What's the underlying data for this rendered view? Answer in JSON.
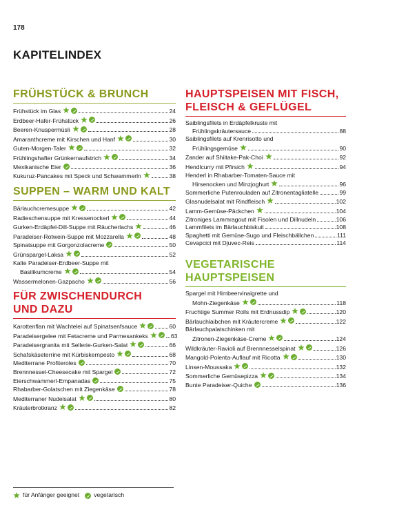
{
  "page_number": "178",
  "title": "KAPITELINDEX",
  "colors": {
    "olive": "#8a9a1c",
    "red": "#d6202a",
    "green": "#7fb52a",
    "veg": "#6cae2f"
  },
  "icons": {
    "beginner": "star-leaf-icon",
    "vegetarian": "leaf-icon"
  },
  "sections": {
    "breakfast": {
      "title": "FRÜHSTÜCK & BRUNCH",
      "entries": [
        {
          "name": "Frühstück im Glas",
          "beg": true,
          "veg": true,
          "page": "24"
        },
        {
          "name": "Erdbeer-Hafer-Frühstück",
          "beg": true,
          "veg": true,
          "page": "26"
        },
        {
          "name": "Beeren-Knuspermüsli",
          "beg": true,
          "veg": true,
          "page": "28"
        },
        {
          "name": "Amaranthcreme mit Kirschen und Hanf",
          "beg": true,
          "veg": true,
          "page": "30"
        },
        {
          "name": "Guten-Morgen-Taler",
          "beg": true,
          "veg": true,
          "page": "32"
        },
        {
          "name": "Frühlingshafter Grünkernaufstrich",
          "beg": true,
          "veg": true,
          "page": "34"
        },
        {
          "name": "Mexikanische Eier",
          "beg": false,
          "veg": true,
          "page": "36"
        },
        {
          "name": "Kukuruz-Pancakes mit Speck und Schwammerln",
          "beg": true,
          "veg": false,
          "page": "38"
        }
      ]
    },
    "soups": {
      "title": "SUPPEN – WARM UND KALT",
      "entries": [
        {
          "name": "Bärlauchcremesuppe",
          "beg": true,
          "veg": true,
          "page": "42"
        },
        {
          "name": "Radieschensuppe mit Kressenockerl",
          "beg": true,
          "veg": true,
          "page": "44"
        },
        {
          "name": "Gurken-Erdäpfel-Dill-Suppe mit Räucherlachs",
          "beg": true,
          "veg": false,
          "page": "46"
        },
        {
          "name": "Paradeiser-Rotwein-Suppe mit Mozzarella",
          "beg": true,
          "veg": true,
          "page": "48"
        },
        {
          "name": "Spinatsuppe mit Gorgonzolacreme",
          "beg": false,
          "veg": true,
          "page": "50"
        },
        {
          "name": "Grünspargel-Laksa",
          "beg": true,
          "veg": true,
          "page": "52"
        },
        {
          "line1": "Kalte Paradeiser-Erdbeer-Suppe mit",
          "name": "Basilikumcreme",
          "beg": true,
          "veg": true,
          "page": "54"
        },
        {
          "name": "Wassermelonen-Gazpacho",
          "beg": true,
          "veg": true,
          "page": "56"
        }
      ]
    },
    "snacks": {
      "title1": "FÜR ZWISCHENDURCH",
      "title2": "UND DAZU",
      "entries": [
        {
          "name": "Karottenflan mit Wachtelei auf Spinatsenfsauce",
          "beg": true,
          "veg": true,
          "page": "60"
        },
        {
          "name": "Paradeisergelee mit Fetacreme und Parmesankeks",
          "beg": true,
          "veg": true,
          "page": "63"
        },
        {
          "name": "Paradeisergranita mit Sellerie-Gurken-Salat",
          "beg": true,
          "veg": true,
          "page": "66"
        },
        {
          "name": "Schafskäseterrine mit Kürbiskernpesto",
          "beg": true,
          "veg": true,
          "page": "68"
        },
        {
          "name": "Mediterrane Profiteroles",
          "beg": false,
          "veg": true,
          "page": "70"
        },
        {
          "name": "Brennnessel-Cheesecake mit Spargel",
          "beg": false,
          "veg": true,
          "page": "72"
        },
        {
          "name": "Eierschwammerl-Empanadas",
          "beg": false,
          "veg": true,
          "page": "75"
        },
        {
          "name": "Rhabarber-Golatschen mit Ziegenkäse",
          "beg": false,
          "veg": true,
          "page": "78"
        },
        {
          "name": "Mediterraner Nudelsalat",
          "beg": true,
          "veg": true,
          "page": "80"
        },
        {
          "name": "Kräuterbrotkranz",
          "beg": true,
          "veg": true,
          "page": "82"
        }
      ]
    },
    "main_fish_meat": {
      "title1": "HAUPTSPEISEN MIT FISCH,",
      "title2": "FLEISCH & GEFLÜGEL",
      "entries": [
        {
          "line1": "Saiblingsfilets in Erdäpfelkruste mit",
          "name": "Frühlingskräutersauce",
          "beg": false,
          "veg": false,
          "page": "88"
        },
        {
          "line1": "Saiblingsfilets auf Krenrisotto und",
          "name": "Frühlingsgemüse",
          "beg": true,
          "veg": false,
          "page": "90"
        },
        {
          "name": "Zander auf Shiitake-Pak-Choi",
          "beg": true,
          "veg": false,
          "page": "92"
        },
        {
          "name": "Hendlcurry mit Pfirsich",
          "beg": true,
          "veg": false,
          "page": "94"
        },
        {
          "line1": "Henderl in Rhabarber-Tomaten-Sauce mit",
          "name": "Hirsenocken und Minzjoghurt",
          "beg": true,
          "veg": false,
          "page": "96"
        },
        {
          "name": "Sommerliche Putenrouladen auf Zitronentagliatelle",
          "beg": false,
          "veg": false,
          "page": "99"
        },
        {
          "name": "Glasnudelsalat mit Rindfleisch",
          "beg": true,
          "veg": false,
          "page": "102"
        },
        {
          "name": "Lamm-Gemüse-Päckchen",
          "beg": true,
          "veg": false,
          "page": "104"
        },
        {
          "name": "Zitroniges Lammragout mit Fisolen und Dillnudeln",
          "beg": false,
          "veg": false,
          "page": "106"
        },
        {
          "name": "Lammfilets im Bärlauchbiskuit",
          "beg": false,
          "veg": false,
          "page": "108"
        },
        {
          "name": "Spaghetti mit Gemüse-Sugo und Fleischbällchen",
          "beg": false,
          "veg": false,
          "page": "111"
        },
        {
          "name": "Cevapcici mit Djuvec-Reis",
          "beg": false,
          "veg": false,
          "page": "114"
        }
      ]
    },
    "main_veg": {
      "title1": "VEGETARISCHE",
      "title2": "HAUPTSPEISEN",
      "entries": [
        {
          "line1": "Spargel mit Himbeervinaigrette und",
          "name": "Mohn-Ziegenkäse",
          "beg": true,
          "veg": true,
          "page": "118"
        },
        {
          "name": "Fruchtige Summer Rolls mit Erdnussdip",
          "beg": true,
          "veg": true,
          "page": "120"
        },
        {
          "name": "Bärlauchlaibchen mit Kräutercreme",
          "beg": true,
          "veg": true,
          "page": "122"
        },
        {
          "line1": "Bärlauchpalatschinken mit",
          "name": "Zitronen-Ziegenkäse-Creme",
          "beg": true,
          "veg": true,
          "page": "124"
        },
        {
          "name": "Wildkräuter-Ravioli auf Brennnesselspinat",
          "beg": true,
          "veg": true,
          "page": "126"
        },
        {
          "name": "Mangold-Polenta-Auflauf mit Ricotta",
          "beg": true,
          "veg": true,
          "page": "130"
        },
        {
          "name": "Linsen-Moussaka",
          "beg": true,
          "veg": true,
          "page": "132"
        },
        {
          "name": "Sommerliche Gemüsepizza",
          "beg": true,
          "veg": true,
          "page": "134"
        },
        {
          "name": "Bunte Paradeiser-Quiche",
          "beg": false,
          "veg": true,
          "page": "136"
        }
      ]
    }
  },
  "legend": {
    "beginner_label": "für Anfänger geeignet",
    "vegetarian_label": "vegetarisch"
  }
}
